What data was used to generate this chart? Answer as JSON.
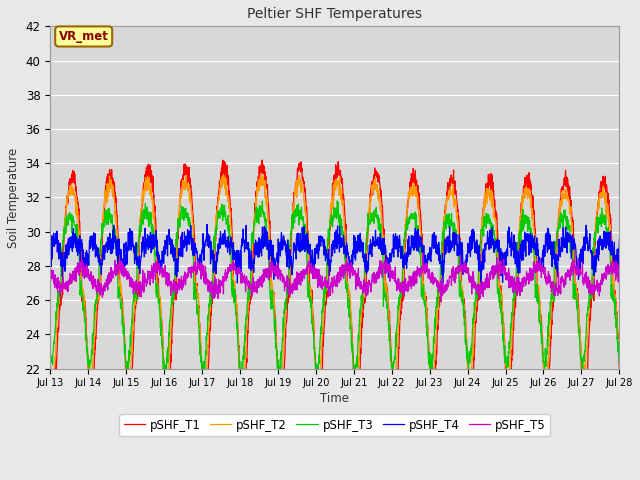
{
  "title": "Peltier SHF Temperatures",
  "xlabel": "Time",
  "ylabel": "Soil Temperature",
  "annotation": "VR_met",
  "ylim": [
    22,
    42
  ],
  "x_tick_labels": [
    "Jul 13",
    "Jul 14",
    "Jul 15",
    "Jul 16",
    "Jul 17",
    "Jul 18",
    "Jul 19",
    "Jul 20",
    "Jul 21",
    "Jul 22",
    "Jul 23",
    "Jul 24",
    "Jul 25",
    "Jul 26",
    "Jul 27",
    "Jul 28"
  ],
  "series_colors": [
    "#ff0000",
    "#ff9900",
    "#00cc00",
    "#0000ff",
    "#cc00cc"
  ],
  "series_names": [
    "pSHF_T1",
    "pSHF_T2",
    "pSHF_T3",
    "pSHF_T4",
    "pSHF_T5"
  ],
  "fig_bg_color": "#e8e8e8",
  "plot_bg_color": "#d8d8d8",
  "grid_color": "#ffffff",
  "annotation_bg": "#ffff99",
  "annotation_border": "#996600",
  "annotation_text_color": "#8B0000"
}
